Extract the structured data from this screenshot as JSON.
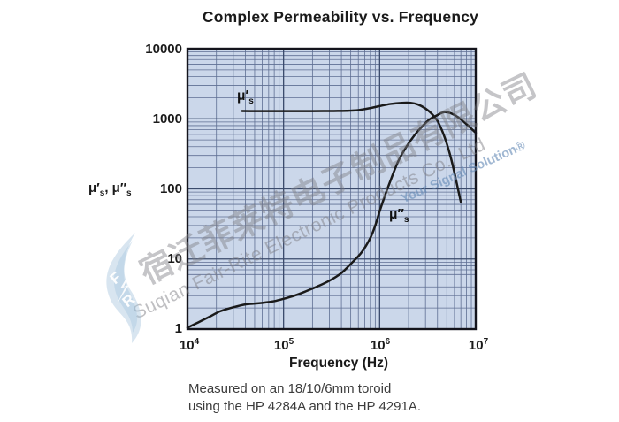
{
  "title": "Complex Permeability vs. Frequency",
  "axes": {
    "x_label": "Frequency (Hz)",
    "x_ticks": [
      {
        "base": "10",
        "exp": "4"
      },
      {
        "base": "10",
        "exp": "5"
      },
      {
        "base": "10",
        "exp": "6"
      },
      {
        "base": "10",
        "exp": "7"
      }
    ],
    "y_ticks": [
      "10000",
      "1000",
      "100",
      "10",
      "1"
    ],
    "y_title": {
      "p1": "μ′",
      "s1": "s",
      "p2": ", μ″",
      "s2": "s"
    }
  },
  "curve_labels": {
    "mu_prime": {
      "pre": "μ′",
      "sub": "s"
    },
    "mu_double_prime": {
      "pre": "μ″",
      "sub": "s"
    }
  },
  "caption": {
    "line1": "Measured on an 18/10/6mm toroid",
    "line2": "using the HP 4284A and the HP 4291A."
  },
  "watermark": {
    "chinese": "宿迁菲莱特电子制品有限公司",
    "english": "Suqian Fair-Rite Electronic Products Co., Ltd",
    "slogan": "Your Signal Solution®",
    "logo_letters": {
      "f": "F",
      "r": "R"
    }
  },
  "colors": {
    "plot_bg": "#cbd7ea",
    "grid_minor": "#5f6f93",
    "grid_major": "#3a4a6b",
    "curve": "#1a1a1a",
    "frame": "#14141c"
  },
  "chart_data": {
    "type": "line",
    "title": "Complex Permeability vs. Frequency",
    "xlabel": "Frequency (Hz)",
    "ylabel": "μ's, μ\"s",
    "x_scale": "log",
    "y_scale": "log",
    "xlim": [
      10000,
      10000000
    ],
    "ylim": [
      1,
      10000
    ],
    "grid": true,
    "legend": "inline-labels",
    "series": [
      {
        "name": "μ's",
        "points": [
          [
            37000,
            1290
          ],
          [
            50000,
            1285
          ],
          [
            70000,
            1285
          ],
          [
            100000,
            1285
          ],
          [
            150000,
            1285
          ],
          [
            200000,
            1285
          ],
          [
            300000,
            1290
          ],
          [
            450000,
            1300
          ],
          [
            600000,
            1330
          ],
          [
            800000,
            1420
          ],
          [
            1000000,
            1520
          ],
          [
            1300000,
            1630
          ],
          [
            1700000,
            1690
          ],
          [
            2100000,
            1690
          ],
          [
            2500000,
            1600
          ],
          [
            3000000,
            1400
          ],
          [
            3500000,
            1170
          ],
          [
            4000000,
            930
          ],
          [
            4500000,
            660
          ],
          [
            5000000,
            440
          ],
          [
            5500000,
            280
          ],
          [
            6000000,
            170
          ],
          [
            6500000,
            103
          ],
          [
            7000000,
            65
          ]
        ]
      },
      {
        "name": "μ\"s",
        "points": [
          [
            10000,
            1.05
          ],
          [
            13000,
            1.25
          ],
          [
            17000,
            1.5
          ],
          [
            22000,
            1.8
          ],
          [
            30000,
            2.05
          ],
          [
            40000,
            2.25
          ],
          [
            52000,
            2.32
          ],
          [
            65000,
            2.4
          ],
          [
            80000,
            2.5
          ],
          [
            100000,
            2.7
          ],
          [
            130000,
            3.0
          ],
          [
            170000,
            3.45
          ],
          [
            220000,
            4.0
          ],
          [
            300000,
            4.9
          ],
          [
            400000,
            6.3
          ],
          [
            500000,
            8.5
          ],
          [
            650000,
            12.5
          ],
          [
            800000,
            20
          ],
          [
            900000,
            30
          ],
          [
            1000000,
            48
          ],
          [
            1120000,
            76
          ],
          [
            1250000,
            115
          ],
          [
            1550000,
            243
          ],
          [
            1900000,
            400
          ],
          [
            2300000,
            580
          ],
          [
            2800000,
            790
          ],
          [
            3300000,
            980
          ],
          [
            3900000,
            1110
          ],
          [
            4400000,
            1210
          ],
          [
            4800000,
            1245
          ],
          [
            5500000,
            1200
          ],
          [
            6500000,
            1060
          ],
          [
            8000000,
            840
          ],
          [
            10000000,
            630
          ]
        ]
      }
    ]
  }
}
